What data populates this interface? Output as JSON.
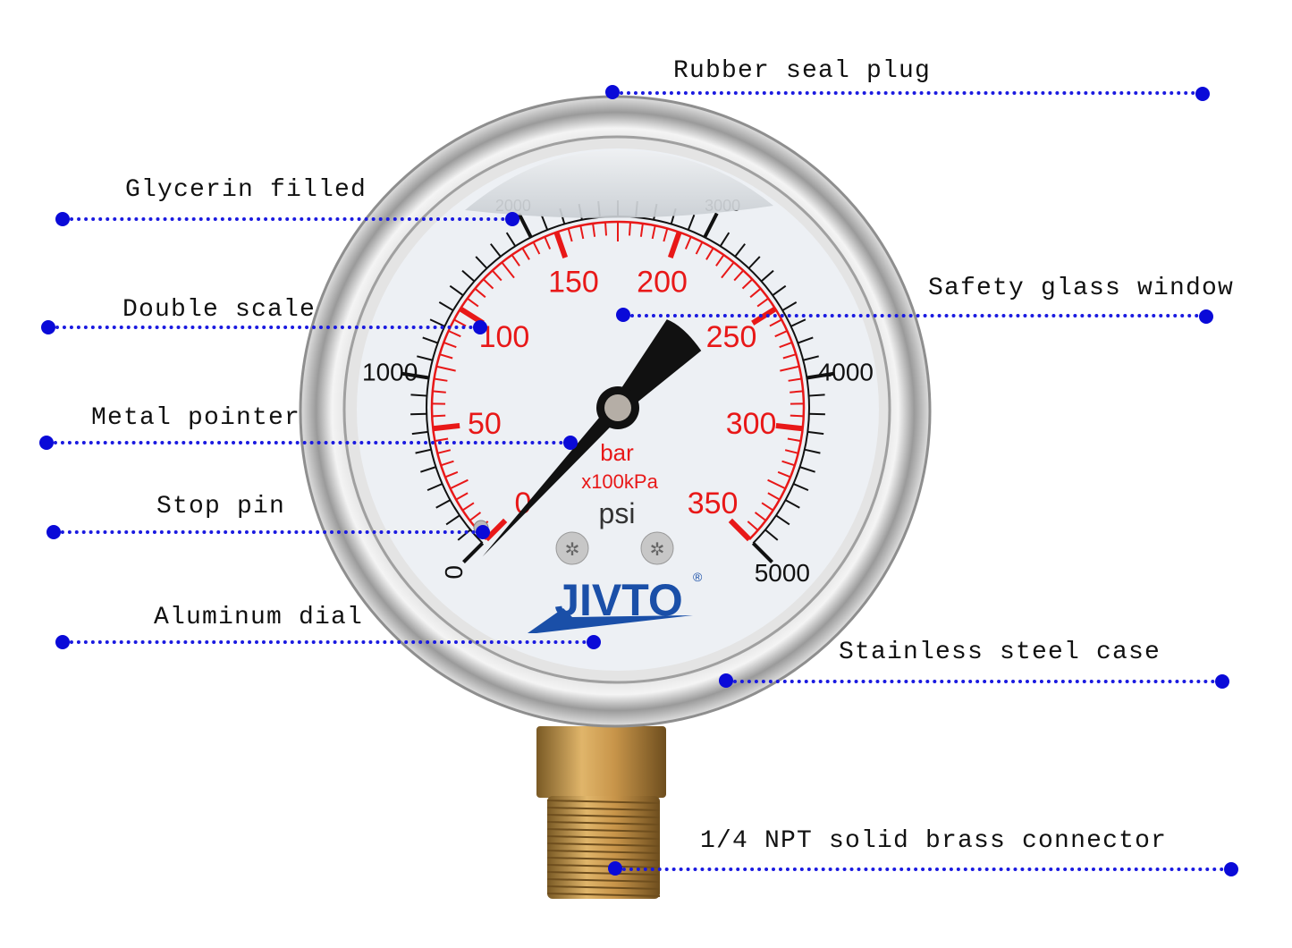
{
  "callouts": [
    {
      "id": "rubber-seal-plug",
      "label": "Rubber seal plug"
    },
    {
      "id": "glycerin-filled",
      "label": "Glycerin filled"
    },
    {
      "id": "double-scale",
      "label": "Double scale"
    },
    {
      "id": "safety-glass-window",
      "label": "Safety glass window"
    },
    {
      "id": "metal-pointer",
      "label": "Metal pointer"
    },
    {
      "id": "stop-pin",
      "label": "Stop pin"
    },
    {
      "id": "aluminum-dial",
      "label": "Aluminum dial"
    },
    {
      "id": "stainless-steel-case",
      "label": "Stainless steel case"
    },
    {
      "id": "brass-connector",
      "label": "1/4 NPT solid brass connector"
    }
  ],
  "gauge": {
    "bar_scale": {
      "min": 0,
      "max": 350,
      "major_labels": [
        "0",
        "50",
        "100",
        "150",
        "200",
        "250",
        "300",
        "350"
      ],
      "color": "#e81818"
    },
    "psi_scale": {
      "min": 0,
      "max": 5000,
      "major_labels": [
        "0",
        "1000",
        "2000",
        "3000",
        "4000",
        "5000"
      ],
      "color": "#111111"
    },
    "unit_bar": "bar",
    "unit_kpa": "x100kPa",
    "unit_psi": "psi",
    "brand": "JIVTO",
    "brand_mark": "®",
    "brand_color": "#1a4fa8",
    "pointer_value_bar": 0
  },
  "colors": {
    "callout_line": "#1a1ae0",
    "brass": "#b8893a"
  }
}
